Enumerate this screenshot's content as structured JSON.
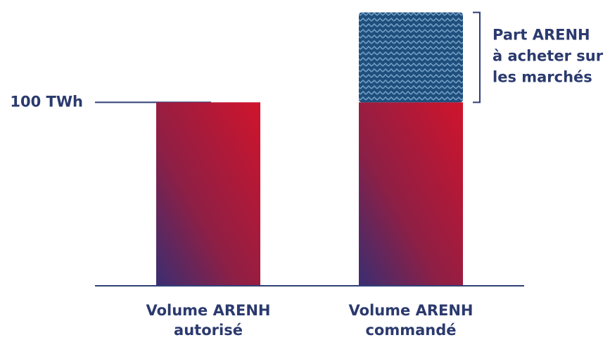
{
  "chart_data": {
    "type": "stacked-bar",
    "categories": [
      [
        "Volume ARENH",
        "autorisé"
      ],
      [
        "Volume ARENH",
        "commandé"
      ]
    ],
    "series": [
      {
        "fill": "gradient",
        "colors": [
          "#d0142c",
          "#3a2e72"
        ],
        "values": [
          100,
          100
        ]
      },
      {
        "fill": "hatch",
        "colors": [
          "#1e4e7c",
          "#6f9cc4"
        ],
        "values": [
          null,
          49
        ],
        "annotation": [
          "Part ARENH",
          "à acheter sur",
          "les marchés"
        ]
      }
    ],
    "ylim": [
      0,
      150
    ],
    "yticks": [
      {
        "value": 100,
        "label": "100 TWh"
      }
    ],
    "axis_color": "#2f3f78",
    "text_color": "#2b3a6e"
  }
}
